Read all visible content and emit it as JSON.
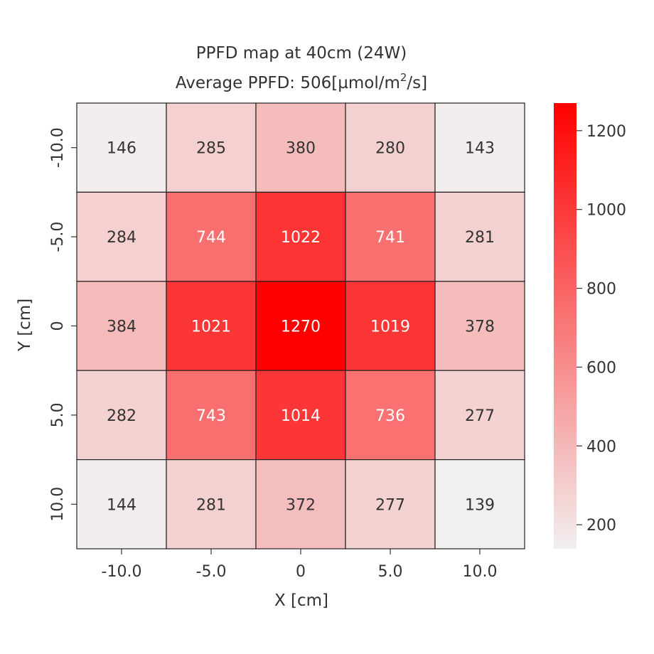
{
  "chart_data": {
    "type": "heatmap",
    "title": "PPFD map at 40cm (24W)",
    "subtitle_prefix": "Average PPFD: 506[µmol/m",
    "subtitle_sup": "2",
    "subtitle_suffix": "/s]",
    "xlabel": "X [cm]",
    "ylabel": "Y [cm]",
    "x_categories": [
      "-10.0",
      "-5.0",
      "0",
      "5.0",
      "10.0"
    ],
    "y_categories": [
      "-10.0",
      "-5.0",
      "0",
      "5.0",
      "10.0"
    ],
    "values": [
      [
        146,
        285,
        380,
        280,
        143
      ],
      [
        284,
        744,
        1022,
        741,
        281
      ],
      [
        384,
        1021,
        1270,
        1019,
        378
      ],
      [
        282,
        743,
        1014,
        736,
        277
      ],
      [
        144,
        281,
        372,
        277,
        139
      ]
    ],
    "value_range": [
      139,
      1270
    ],
    "colormap": {
      "low": "#f2efef",
      "high": "#ff0000"
    },
    "colorbar_ticks": [
      "200",
      "400",
      "600",
      "800",
      "1000",
      "1200"
    ],
    "colorbar_tick_values": [
      200,
      400,
      600,
      800,
      1000,
      1200
    ],
    "text_color_dark": "#333333",
    "text_color_light": "#ffffff",
    "cell_border_color": "#222222"
  }
}
